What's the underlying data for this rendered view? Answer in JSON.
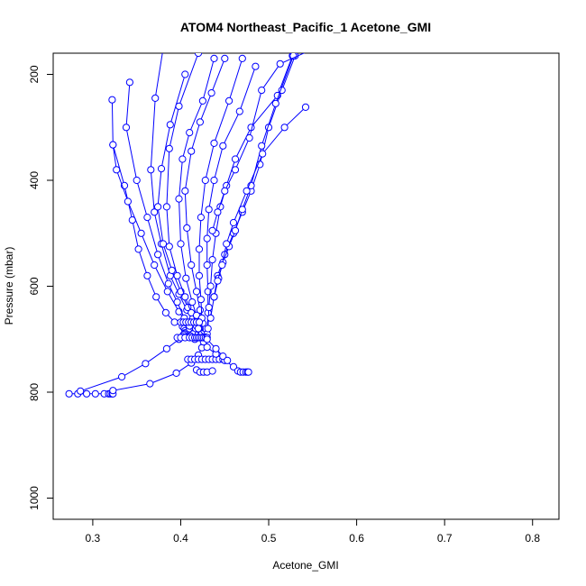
{
  "chart_data": {
    "type": "scatter",
    "title": "ATOM4 Northeast_Pacific_1 Acetone_GMI",
    "xlabel": "Acetone_GMI",
    "ylabel": "Pressure (mbar)",
    "xlim": [
      0.255,
      0.83
    ],
    "ylim": [
      1040,
      160
    ],
    "y_reversed": true,
    "x_ticks": [
      0.3,
      0.4,
      0.5,
      0.6,
      0.7,
      0.8
    ],
    "x_tick_labels": [
      "0.3",
      "0.4",
      "0.5",
      "0.6",
      "0.7",
      "0.8"
    ],
    "y_ticks": [
      200,
      400,
      600,
      800,
      1000
    ],
    "y_tick_labels": [
      "200",
      "400",
      "600",
      "800",
      "1000"
    ],
    "grid": false,
    "legend": "none",
    "marker": "open-circle",
    "connected": true,
    "series_color": "#0000ff",
    "series": [
      {
        "x": [
          0.322,
          0.323,
          0.336,
          0.345,
          0.352,
          0.362,
          0.372,
          0.383,
          0.393,
          0.402,
          0.404,
          0.405,
          0.405,
          0.404,
          0.403,
          0.402
        ],
        "y": [
          248,
          333,
          410,
          475,
          530,
          580,
          620,
          650,
          668,
          676,
          680,
          684,
          688,
          690,
          692,
          695
        ]
      },
      {
        "x": [
          0.323,
          0.327,
          0.34,
          0.355,
          0.37,
          0.385,
          0.398,
          0.407,
          0.41
        ],
        "y": [
          333,
          380,
          440,
          500,
          560,
          610,
          648,
          670,
          680
        ]
      },
      {
        "x": [
          0.342,
          0.338,
          0.35,
          0.362,
          0.374,
          0.386,
          0.396,
          0.404,
          0.41,
          0.414,
          0.416
        ],
        "y": [
          215,
          300,
          400,
          470,
          540,
          595,
          630,
          660,
          675,
          690,
          700
        ]
      },
      {
        "x": [
          0.383,
          0.371,
          0.366,
          0.37,
          0.378,
          0.388,
          0.398,
          0.407,
          0.413,
          0.417
        ],
        "y": [
          120,
          245,
          380,
          460,
          520,
          580,
          615,
          645,
          665,
          680
        ]
      },
      {
        "x": [
          0.405,
          0.388,
          0.378,
          0.374,
          0.38,
          0.39,
          0.4,
          0.408,
          0.414,
          0.418,
          0.42
        ],
        "y": [
          200,
          295,
          378,
          450,
          520,
          570,
          610,
          640,
          660,
          675,
          690
        ]
      },
      {
        "x": [
          0.42,
          0.398,
          0.387,
          0.384,
          0.387,
          0.396,
          0.405,
          0.412,
          0.418,
          0.421
        ],
        "y": [
          160,
          260,
          340,
          450,
          525,
          580,
          620,
          650,
          668,
          682
        ]
      },
      {
        "x": [
          0.438,
          0.425,
          0.41,
          0.402,
          0.398,
          0.4,
          0.406,
          0.413,
          0.418,
          0.421,
          0.422
        ],
        "y": [
          170,
          250,
          310,
          360,
          435,
          520,
          585,
          630,
          655,
          675,
          695
        ]
      },
      {
        "x": [
          0.45,
          0.435,
          0.422,
          0.412,
          0.405,
          0.407,
          0.412,
          0.418,
          0.422,
          0.425,
          0.426
        ],
        "y": [
          170,
          235,
          290,
          345,
          420,
          490,
          560,
          610,
          645,
          670,
          697
        ]
      },
      {
        "x": [
          0.47,
          0.455,
          0.438,
          0.428,
          0.423,
          0.421,
          0.421,
          0.423,
          0.424,
          0.424
        ],
        "y": [
          170,
          250,
          330,
          400,
          470,
          530,
          580,
          625,
          660,
          690
        ]
      },
      {
        "x": [
          0.485,
          0.467,
          0.448,
          0.438,
          0.432,
          0.43,
          0.43,
          0.431,
          0.431,
          0.43
        ],
        "y": [
          185,
          270,
          335,
          400,
          455,
          510,
          560,
          610,
          650,
          690
        ]
      },
      {
        "x": [
          0.527,
          0.51,
          0.48,
          0.462,
          0.452,
          0.445,
          0.44,
          0.436,
          0.434,
          0.432,
          0.431
        ],
        "y": [
          165,
          240,
          300,
          360,
          410,
          450,
          500,
          550,
          600,
          640,
          680
        ]
      },
      {
        "x": [
          0.53,
          0.515,
          0.5,
          0.49,
          0.48,
          0.47,
          0.46,
          0.45,
          0.442,
          0.438,
          0.434
        ],
        "y": [
          165,
          230,
          300,
          370,
          420,
          460,
          500,
          540,
          580,
          620,
          660
        ]
      },
      {
        "x": [
          0.528,
          0.508,
          0.492,
          0.48,
          0.47,
          0.462,
          0.455,
          0.448,
          0.443,
          0.438
        ],
        "y": [
          165,
          255,
          335,
          410,
          455,
          495,
          525,
          555,
          585,
          620
        ]
      },
      {
        "x": [
          0.542,
          0.518,
          0.493,
          0.475,
          0.46,
          0.452,
          0.447,
          0.442,
          0.438
        ],
        "y": [
          262,
          300,
          350,
          420,
          480,
          520,
          560,
          590,
          620
        ]
      },
      {
        "x": [
          0.56,
          0.513,
          0.492,
          0.478,
          0.462,
          0.45,
          0.442,
          0.436
        ],
        "y": [
          145,
          180,
          230,
          320,
          380,
          420,
          460,
          495
        ]
      },
      {
        "x": [
          0.273,
          0.283,
          0.293,
          0.303,
          0.313,
          0.318,
          0.32,
          0.322,
          0.323
        ],
        "y": [
          803,
          803,
          803,
          803,
          803,
          803,
          803,
          803,
          803
        ]
      },
      {
        "x": [
          0.286,
          0.333,
          0.36,
          0.384,
          0.398,
          0.406,
          0.411
        ],
        "y": [
          798,
          771,
          746,
          718,
          700,
          696,
          694
        ]
      },
      {
        "x": [
          0.323,
          0.365,
          0.395,
          0.412,
          0.42,
          0.424,
          0.426,
          0.428
        ],
        "y": [
          797,
          784,
          764,
          745,
          730,
          716,
          705,
          696
        ]
      },
      {
        "x": [
          0.396,
          0.4,
          0.405,
          0.41,
          0.413,
          0.416,
          0.418,
          0.42,
          0.422,
          0.424,
          0.426,
          0.428,
          0.43
        ],
        "y": [
          697,
          697,
          697,
          697,
          697,
          697,
          697,
          697,
          697,
          697,
          697,
          697,
          697
        ]
      },
      {
        "x": [
          0.408,
          0.412,
          0.416,
          0.42,
          0.424,
          0.428,
          0.432,
          0.436,
          0.44,
          0.444,
          0.448
        ],
        "y": [
          738,
          738,
          738,
          738,
          738,
          738,
          738,
          738,
          738,
          738,
          738
        ]
      },
      {
        "x": [
          0.418,
          0.422,
          0.426,
          0.43,
          0.436
        ],
        "y": [
          758,
          762,
          762,
          762,
          760
        ]
      },
      {
        "x": [
          0.43,
          0.44,
          0.45,
          0.46,
          0.465,
          0.468,
          0.471,
          0.474,
          0.476,
          0.477
        ],
        "y": [
          715,
          728,
          740,
          752,
          760,
          762,
          762,
          762,
          762,
          762
        ]
      },
      {
        "x": [
          0.4,
          0.403,
          0.406,
          0.409,
          0.412,
          0.415,
          0.418,
          0.421
        ],
        "y": [
          668,
          668,
          668,
          668,
          668,
          668,
          668,
          668
        ]
      },
      {
        "x": [
          0.42,
          0.43,
          0.44,
          0.448,
          0.453
        ],
        "y": [
          680,
          700,
          718,
          732,
          740
        ]
      }
    ]
  }
}
